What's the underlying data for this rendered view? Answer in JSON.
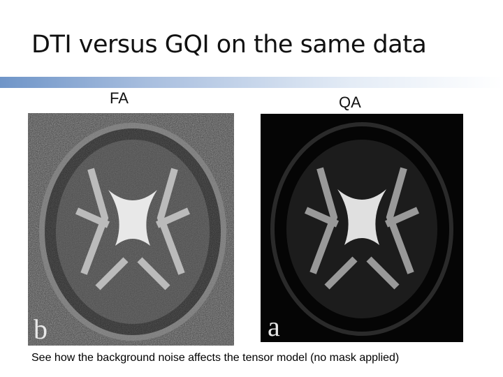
{
  "header": {
    "title": "DTI versus GQI on the same data"
  },
  "panels": [
    {
      "label": "FA",
      "corner_letter": "b"
    },
    {
      "label": "QA",
      "corner_letter": "a"
    }
  ],
  "caption": "See how the background noise affects the tensor model (no mask applied)"
}
